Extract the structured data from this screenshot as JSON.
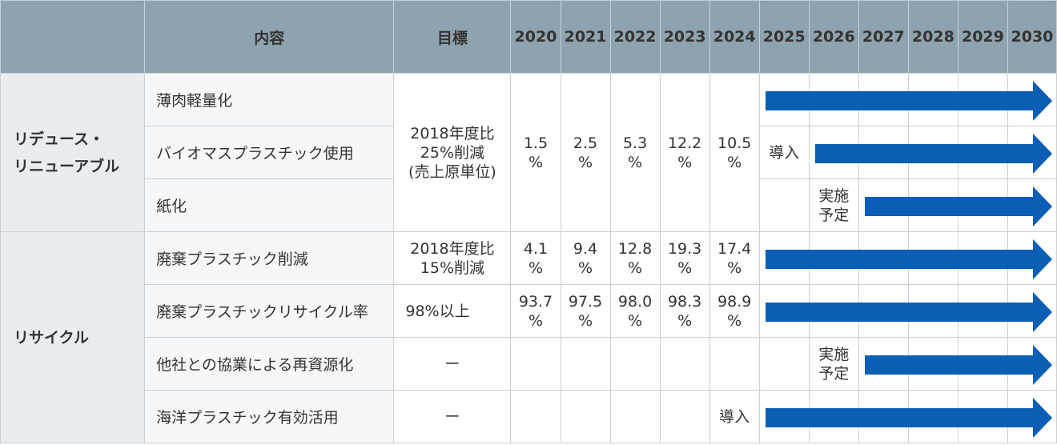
{
  "header": {
    "content": "内容",
    "target": "目標",
    "years": [
      "2020",
      "2021",
      "2022",
      "2023",
      "2024",
      "2025",
      "2026",
      "2027",
      "2028",
      "2029",
      "2030"
    ]
  },
  "categories": {
    "reduce": "リデュース・\nリニューアブル",
    "recycle": "リサイクル"
  },
  "rows": [
    {
      "item": "薄肉軽量化"
    },
    {
      "item": "バイオマスプラスチック使用",
      "label": "導入"
    },
    {
      "item": "紙化",
      "label": "実施\n予定"
    },
    {
      "item": "廃棄プラスチック削減",
      "target": "2018年度比\n15%削減",
      "values": [
        "4.1\n%",
        "9.4\n%",
        "12.8\n%",
        "19.3\n%",
        "17.4\n%"
      ]
    },
    {
      "item": "廃棄プラスチックリサイクル率",
      "target": "98%以上",
      "values": [
        "93.7\n%",
        "97.5\n%",
        "98.0\n%",
        "98.3\n%",
        "98.9\n%"
      ]
    },
    {
      "item": "他社との協業による再資源化",
      "target": "ー",
      "label": "実施\n予定"
    },
    {
      "item": "海洋プラスチック有効活用",
      "target": "ー",
      "label": "導入"
    }
  ],
  "reduce_group": {
    "target": "2018年度比\n25%削減\n(売上原単位)",
    "values": [
      "1.5\n%",
      "2.5\n%",
      "5.3\n%",
      "12.2\n%",
      "10.5\n%"
    ]
  },
  "colors": {
    "header_bg": "#8ea3ae",
    "arrow": "#0a5fb4",
    "category_bg": "#e9edf0"
  }
}
